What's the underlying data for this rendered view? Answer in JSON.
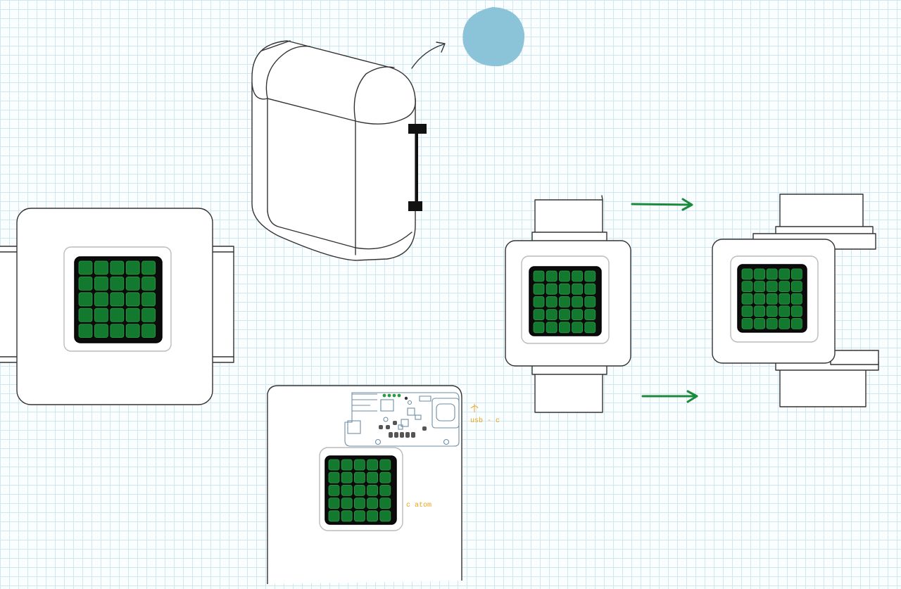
{
  "annotations": {
    "usb_label": "usb - c",
    "atom_label": "c atom"
  },
  "colors": {
    "led_green": "#13792f",
    "arrow_green": "#1c8a3c",
    "blob_blue": "#8bc3d8",
    "note_orange": "#e8a51a",
    "grid_line": "#cfe7f1"
  },
  "icons": {
    "arrow_to_color": "curved-arrow-icon",
    "flow_arrows": "right-arrow-icon"
  }
}
